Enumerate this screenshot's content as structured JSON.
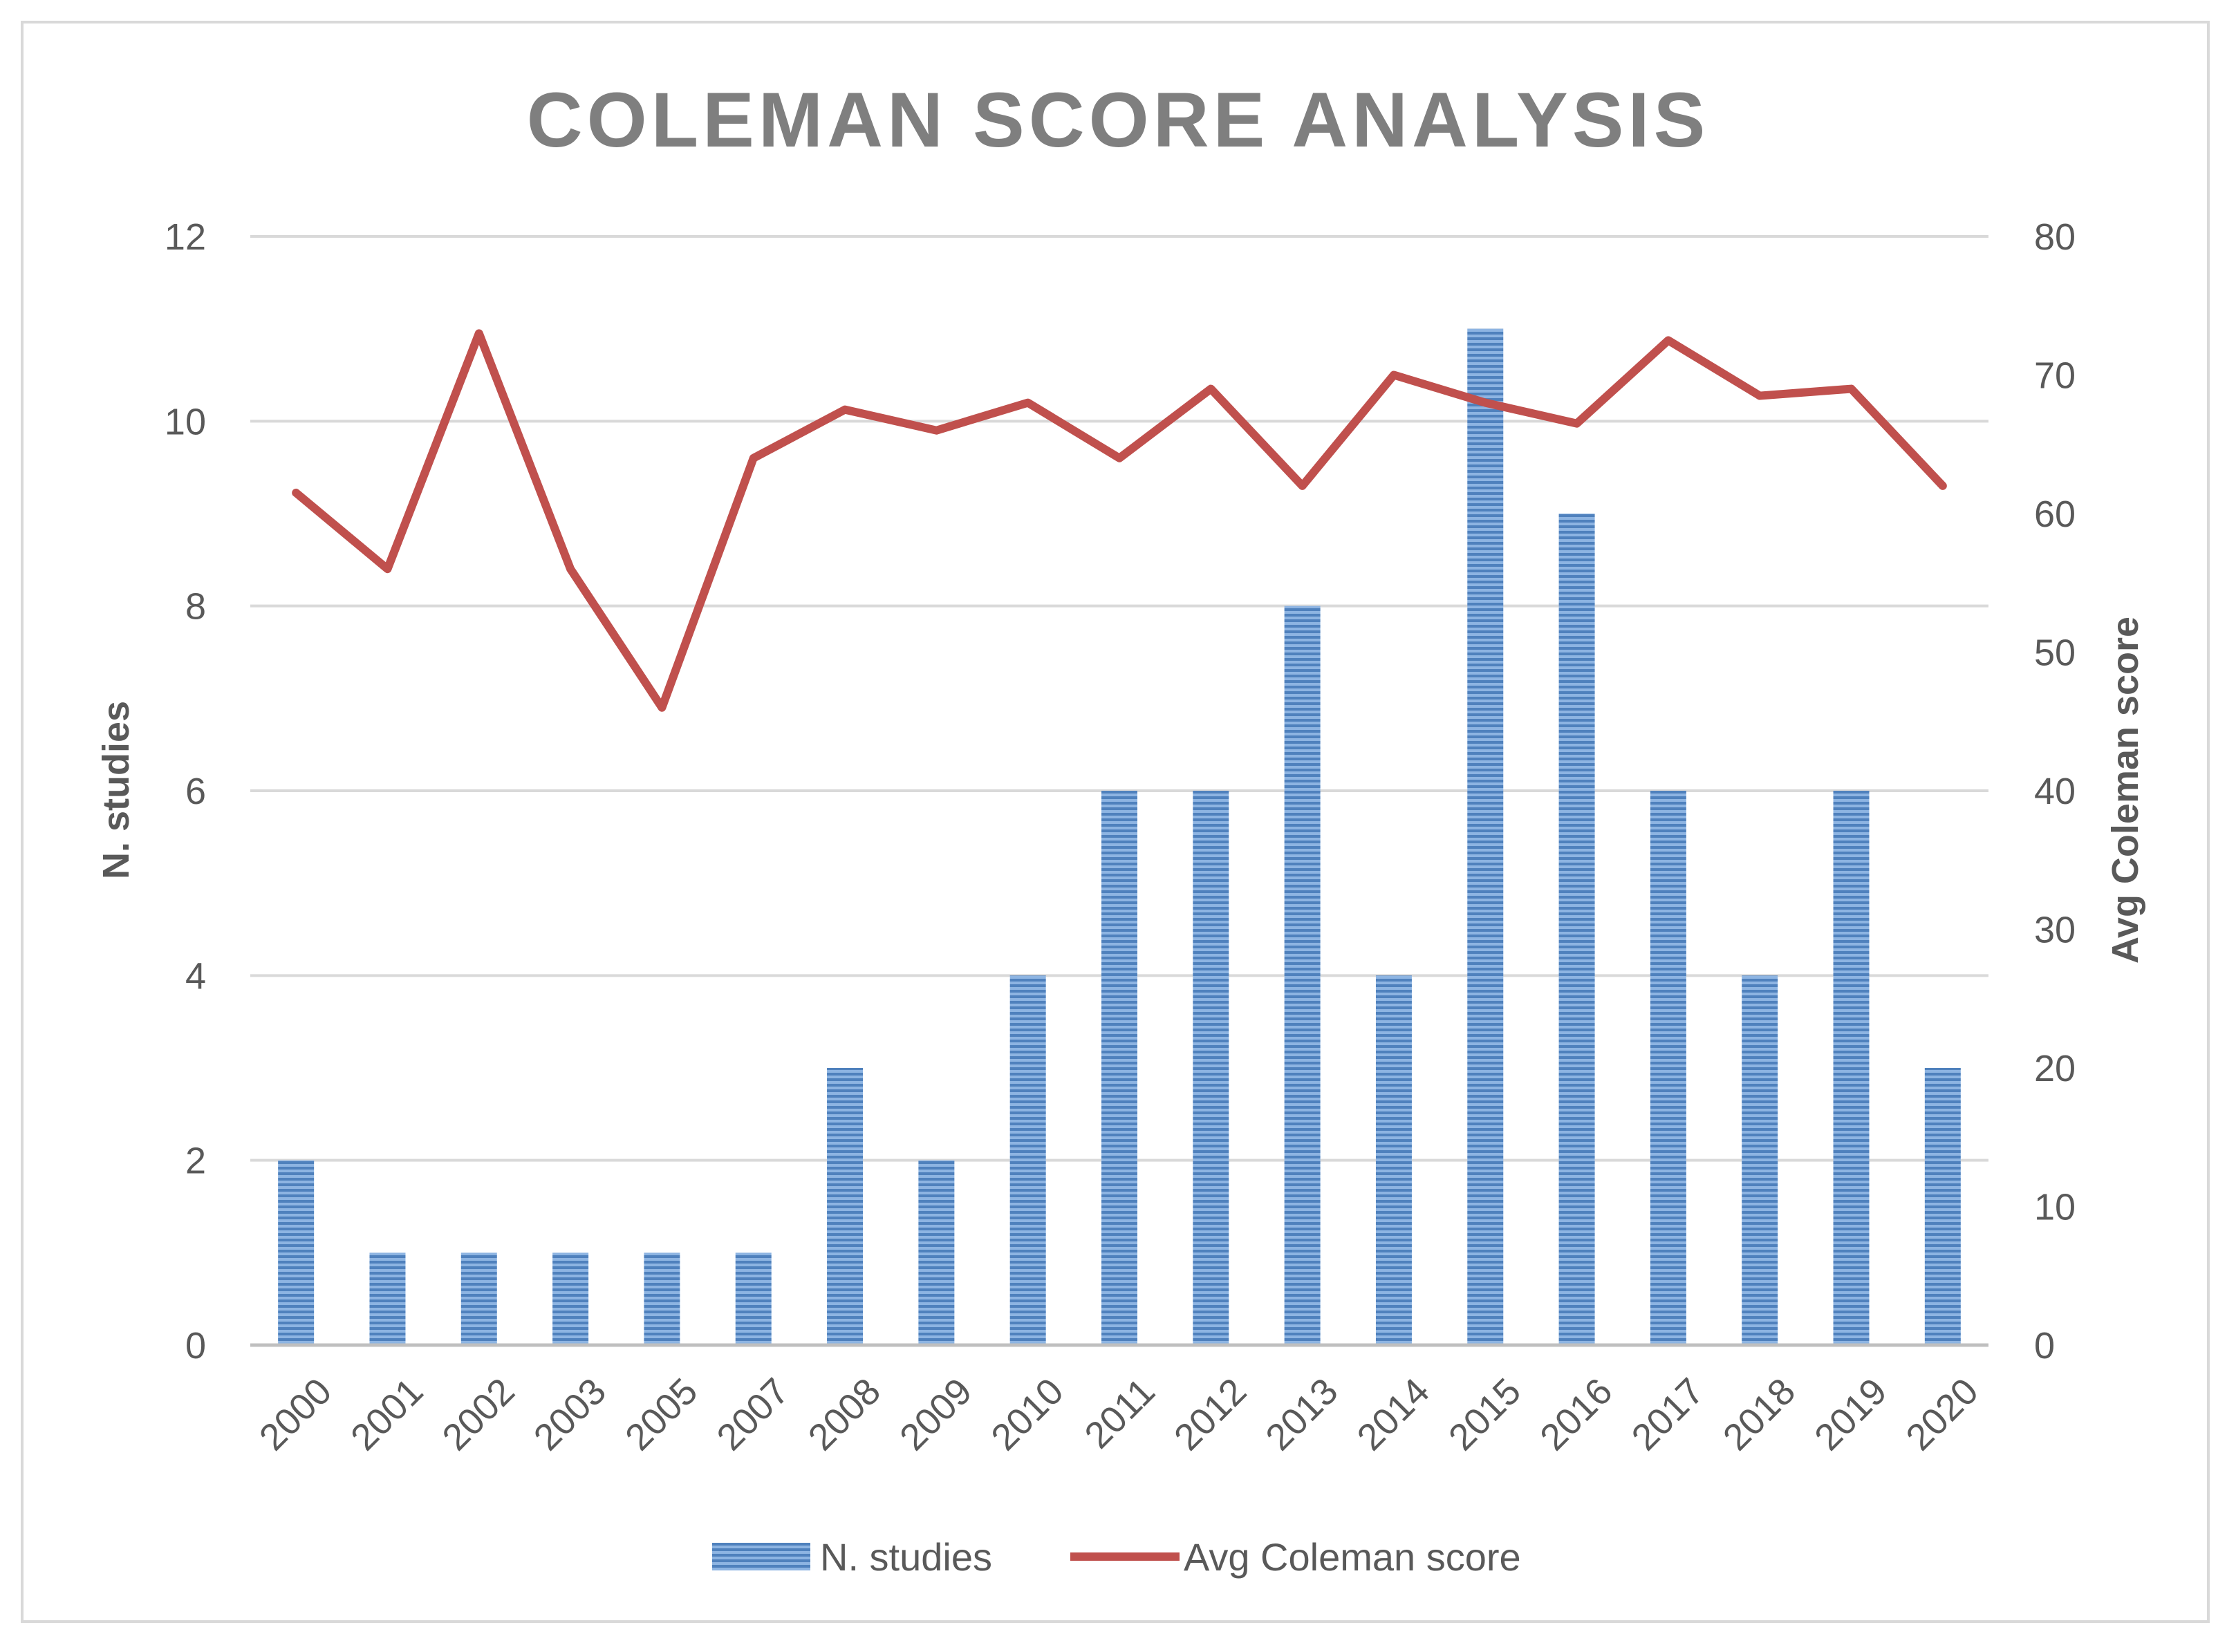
{
  "chart_data": {
    "type": "bar",
    "title": "COLEMAN SCORE ANALYSIS",
    "categories": [
      "2000",
      "2001",
      "2002",
      "2003",
      "2005",
      "2007",
      "2008",
      "2009",
      "2010",
      "2011",
      "2012",
      "2013",
      "2014",
      "2015",
      "2016",
      "2017",
      "2018",
      "2019",
      "2020"
    ],
    "series": [
      {
        "name": "N. studies",
        "type": "bar",
        "axis": "left",
        "color": "#5b8fd0",
        "values": [
          2,
          1,
          1,
          1,
          1,
          1,
          3,
          2,
          4,
          6,
          6,
          8,
          4,
          11,
          9,
          6,
          4,
          6,
          3
        ]
      },
      {
        "name": "Avg Coleman score",
        "type": "line",
        "axis": "right",
        "color": "#c0504d",
        "values": [
          61.5,
          56,
          73,
          56,
          46,
          64,
          67.5,
          66,
          68,
          64,
          69,
          62,
          70,
          68,
          66.5,
          72.5,
          68.5,
          69,
          62
        ]
      }
    ],
    "y_left": {
      "label": "N. studies",
      "ylim": [
        0,
        12
      ],
      "ticks": [
        "0",
        "2",
        "4",
        "6",
        "8",
        "10",
        "12"
      ]
    },
    "y_right": {
      "label": "Avg Coleman score",
      "ylim": [
        0,
        80
      ],
      "ticks": [
        "0",
        "10",
        "20",
        "30",
        "40",
        "50",
        "60",
        "70",
        "80"
      ]
    },
    "xlabel": "",
    "grid": true,
    "legend_position": "bottom"
  }
}
